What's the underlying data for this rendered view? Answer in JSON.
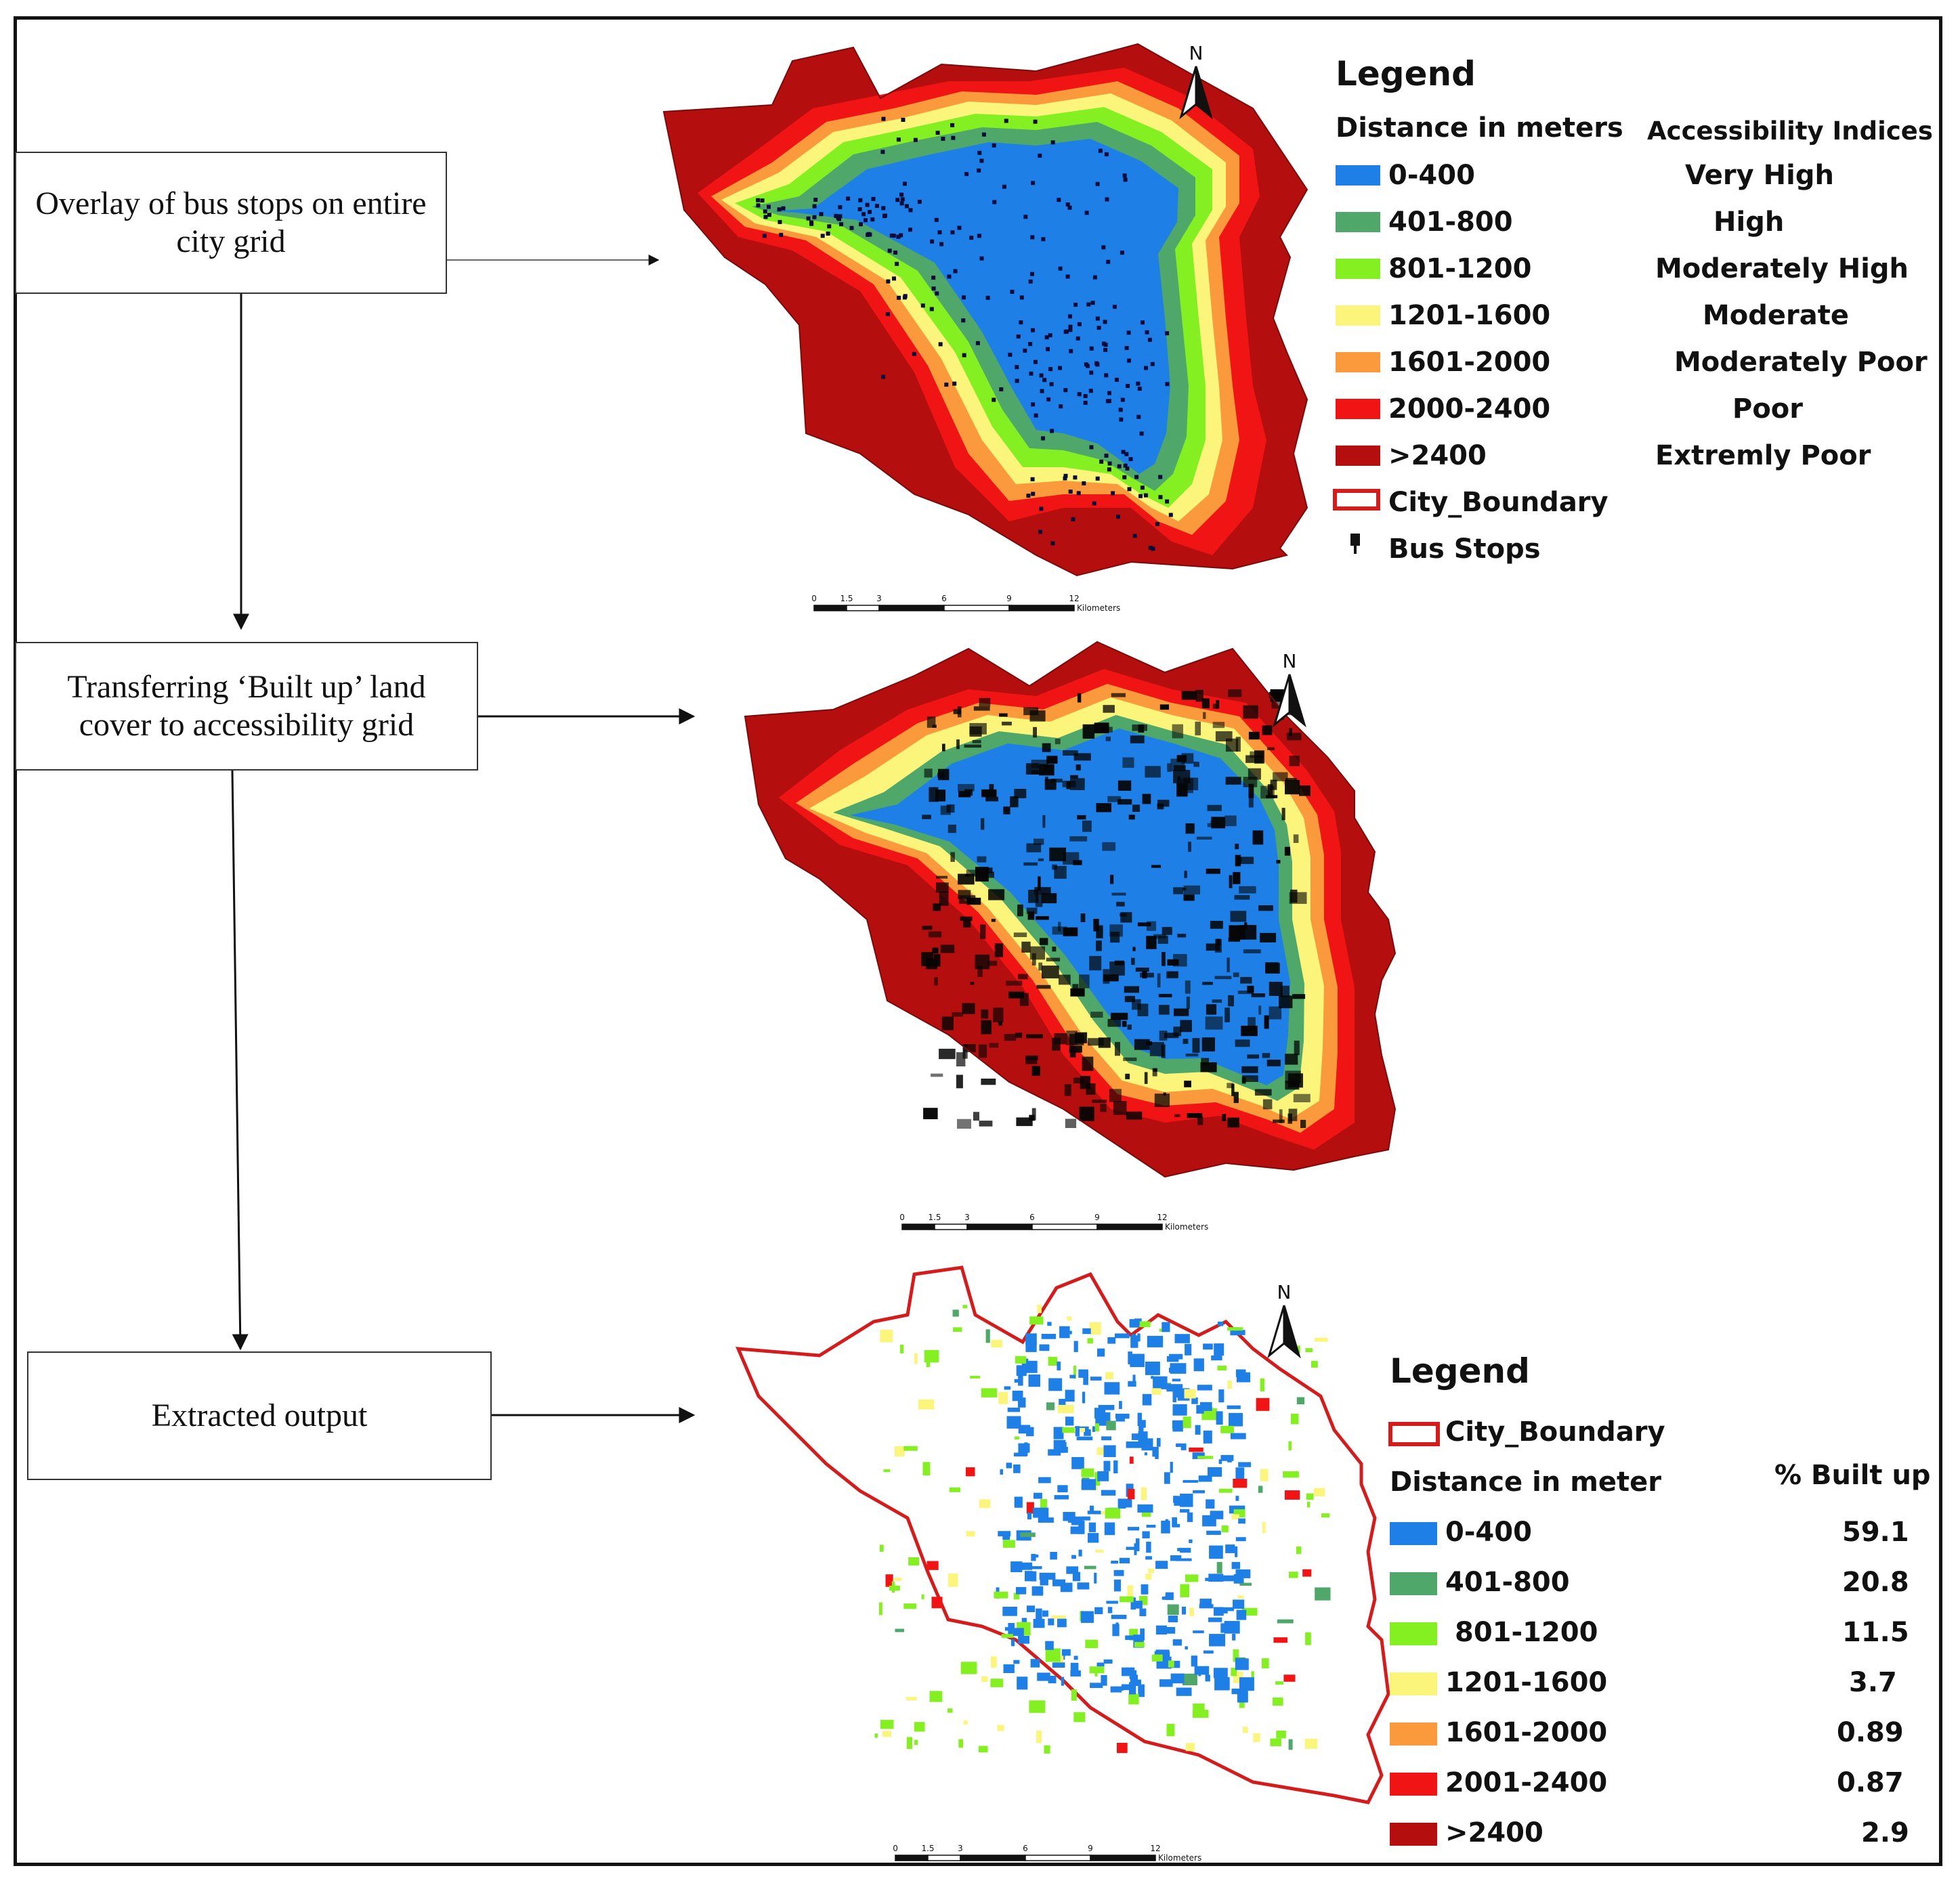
{
  "steps": [
    {
      "text": "Overlay of bus stops on entire city grid"
    },
    {
      "text": "Transferring ‘Built up’ land cover to accessibility grid"
    },
    {
      "text": "Extracted output"
    }
  ],
  "north_label": "N",
  "scalebar": {
    "ticks": [
      "0",
      "1.5",
      "3",
      "6",
      "9",
      "12"
    ],
    "unit": "Kilometers"
  },
  "colors": {
    "very_high": "#1e7fe6",
    "high": "#4fa86a",
    "moderately_high": "#84f022",
    "moderate": "#fbf57c",
    "moderately_poor": "#fb9a3c",
    "poor": "#f01414",
    "extremely_poor": "#b50e0e",
    "boundary": "#d41c1c"
  },
  "legend1": {
    "title": "Legend",
    "col1_header": "Distance in meters",
    "col2_header": "Accessibility Indices",
    "items": [
      {
        "range": "0-400",
        "index": "Very High"
      },
      {
        "range": "401-800",
        "index": "High"
      },
      {
        "range": "801-1200",
        "index": "Moderately High"
      },
      {
        "range": "1201-1600",
        "index": "Moderate"
      },
      {
        "range": "1601-2000",
        "index": "Moderately Poor"
      },
      {
        "range": "2000-2400",
        "index": "Poor"
      },
      {
        "range": ">2400",
        "index": "Extremly Poor"
      }
    ],
    "boundary_label": "City_Boundary",
    "bus_stops_label": "Bus Stops"
  },
  "legend2": {
    "title": "Legend",
    "boundary_label": "City_Boundary",
    "col1_header": "Distance in meter",
    "col2_header": "% Built up",
    "items": [
      {
        "range": "0-400",
        "built_up": "59.1"
      },
      {
        "range": "401-800",
        "built_up": "20.8"
      },
      {
        "range": "801-1200",
        "built_up": "11.5"
      },
      {
        "range": "1201-1600",
        "built_up": "3.7"
      },
      {
        "range": "1601-2000",
        "built_up": "0.89"
      },
      {
        "range": "2001-2400",
        "built_up": "0.87"
      },
      {
        "range": ">2400",
        "built_up": "2.9"
      }
    ]
  }
}
